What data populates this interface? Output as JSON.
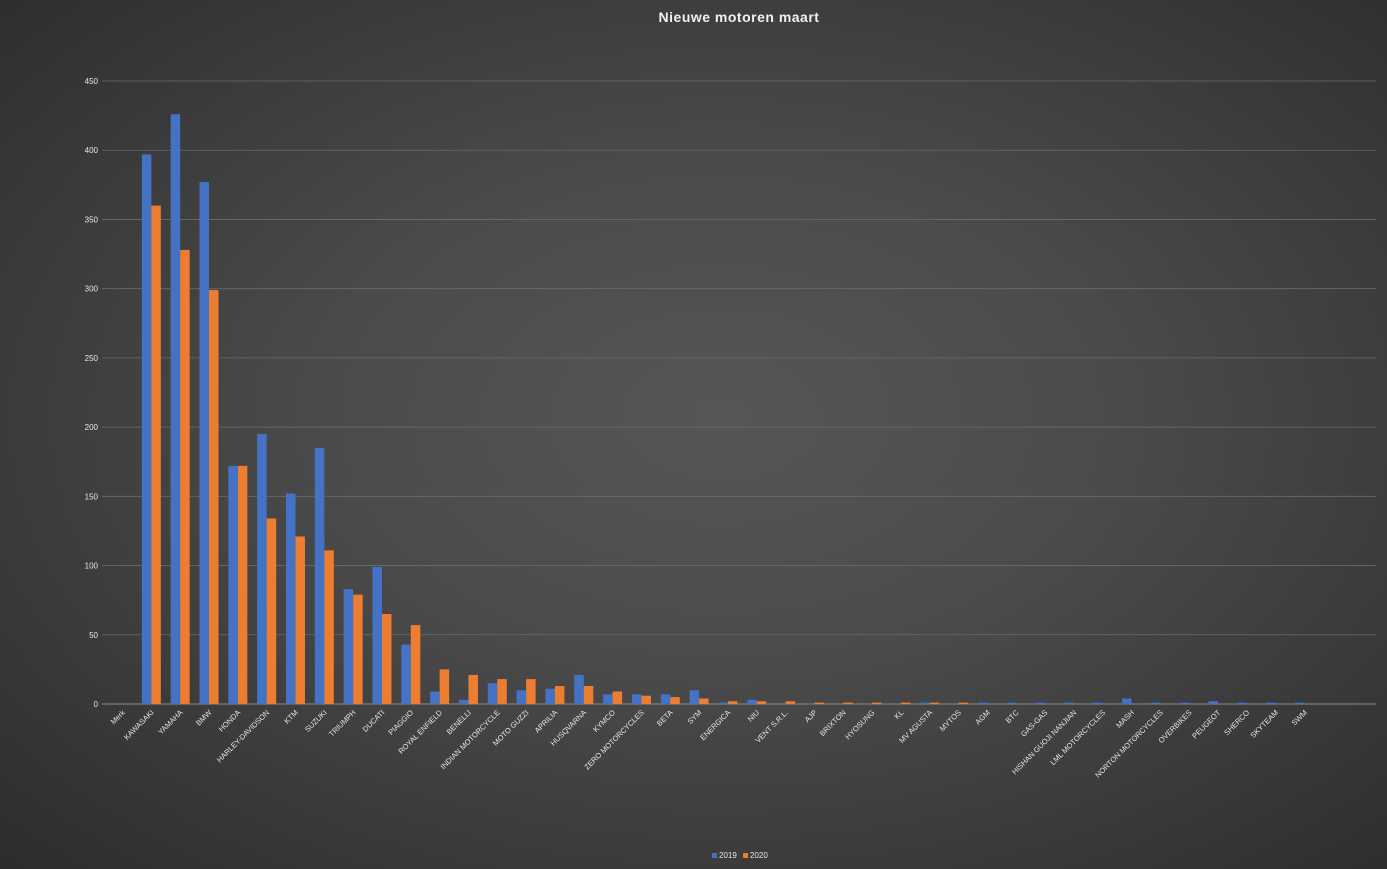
{
  "chart_data": {
    "type": "bar",
    "title": "Nieuwe motoren maart",
    "xlabel": "",
    "ylabel": "",
    "ylim": [
      0,
      450
    ],
    "yticks": [
      0,
      50,
      100,
      150,
      200,
      250,
      300,
      350,
      400,
      450
    ],
    "grid": true,
    "legend_position": "bottom",
    "categories": [
      "Merk",
      "KAWASAKI",
      "YAMAHA",
      "BMW",
      "HONDA",
      "HARLEY-DAVIDSON",
      "KTM",
      "SUZUKI",
      "TRIUMPH",
      "DUCATI",
      "PIAGGIO",
      "ROYAL ENFIELD",
      "BENELLI",
      "INDIAN MOTORCYCLE",
      "MOTO GUZZI",
      "APRILIA",
      "HUSQVARNA",
      "KYMCO",
      "ZERO MOTORCYCLES",
      "BETA",
      "SYM",
      "ENERGICA",
      "NIU",
      "VENT S.R.L.",
      "AJP",
      "BRIXTON",
      "HYOSUNG",
      "KL",
      "MV AGUSTA",
      "MYTOS",
      "AGM",
      "BTC",
      "GAS-GAS",
      "HISHAN GUOJI NANJIAN",
      "LML MOTORCYCLES",
      "MASH",
      "NORTON MOTORCYCLES",
      "OVERBIKES",
      "PEUGEOT",
      "SHERCO",
      "SKYTEAM",
      "SWM"
    ],
    "series": [
      {
        "name": "2019",
        "color": "#4472c4",
        "values": [
          0,
          397,
          426,
          377,
          172,
          195,
          152,
          185,
          83,
          99,
          43,
          9,
          3,
          15,
          10,
          11,
          21,
          7,
          7,
          7,
          10,
          1,
          3,
          0,
          0,
          0,
          0,
          0,
          1,
          0,
          1,
          1,
          1,
          1,
          1,
          4,
          1,
          1,
          2,
          1,
          1,
          1
        ]
      },
      {
        "name": "2020",
        "color": "#ed7d31",
        "values": [
          0,
          360,
          328,
          299,
          172,
          134,
          121,
          111,
          79,
          65,
          57,
          25,
          21,
          18,
          18,
          13,
          13,
          9,
          6,
          5,
          4,
          2,
          2,
          2,
          1,
          1,
          1,
          1,
          1,
          1,
          0,
          0,
          0,
          0,
          0,
          0,
          0,
          0,
          0,
          0,
          0,
          0
        ]
      }
    ]
  }
}
